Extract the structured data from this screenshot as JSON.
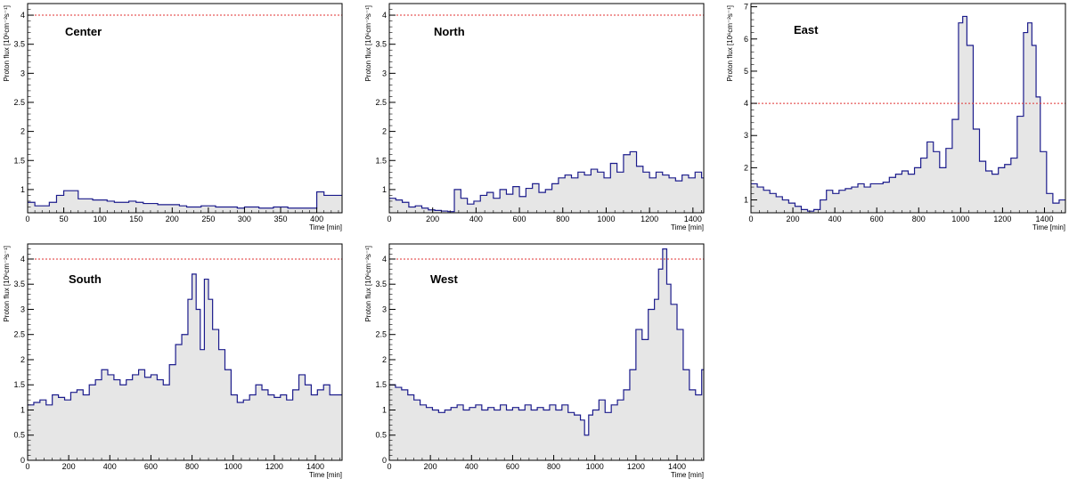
{
  "colors": {
    "line": "#1c1c8c",
    "fill": "#e6e6e6",
    "threshold": "#e03030",
    "frame": "#000000"
  },
  "chart_data": [
    {
      "type": "area",
      "title": "Center",
      "xlabel": "Time [min]",
      "ylabel": "Proton flux [10⁶cm⁻²s⁻¹]",
      "xlim": [
        0,
        435
      ],
      "ylim": [
        0.6,
        4.2
      ],
      "xticks": [
        0,
        50,
        100,
        150,
        200,
        250,
        300,
        350,
        400
      ],
      "yticks": [
        1,
        1.5,
        2,
        2.5,
        3,
        3.5,
        4
      ],
      "threshold": 4,
      "grid": false,
      "x": [
        0,
        10,
        20,
        30,
        40,
        50,
        60,
        70,
        80,
        90,
        100,
        110,
        120,
        130,
        140,
        150,
        160,
        170,
        180,
        190,
        200,
        210,
        220,
        230,
        240,
        250,
        260,
        270,
        280,
        290,
        300,
        310,
        320,
        330,
        340,
        350,
        360,
        370,
        380,
        390,
        400,
        410,
        420,
        430
      ],
      "values": [
        0.78,
        0.72,
        0.72,
        0.78,
        0.9,
        0.98,
        0.98,
        0.84,
        0.84,
        0.82,
        0.82,
        0.8,
        0.78,
        0.78,
        0.8,
        0.78,
        0.76,
        0.76,
        0.74,
        0.74,
        0.74,
        0.72,
        0.7,
        0.7,
        0.72,
        0.72,
        0.7,
        0.7,
        0.7,
        0.68,
        0.7,
        0.7,
        0.68,
        0.68,
        0.7,
        0.7,
        0.68,
        0.68,
        0.68,
        0.68,
        0.96,
        0.9,
        0.9,
        0.9
      ]
    },
    {
      "type": "area",
      "title": "North",
      "xlabel": "Time [min]",
      "ylabel": "Proton flux [10⁶cm⁻²s⁻¹]",
      "xlim": [
        0,
        1450
      ],
      "ylim": [
        0.6,
        4.2
      ],
      "xticks": [
        0,
        200,
        400,
        600,
        800,
        1000,
        1200,
        1400
      ],
      "yticks": [
        1,
        1.5,
        2,
        2.5,
        3,
        3.5,
        4
      ],
      "threshold": 4,
      "grid": false,
      "x": [
        0,
        30,
        60,
        90,
        120,
        150,
        180,
        210,
        240,
        270,
        300,
        330,
        360,
        390,
        420,
        450,
        480,
        510,
        540,
        570,
        600,
        630,
        660,
        690,
        720,
        750,
        780,
        810,
        840,
        870,
        900,
        930,
        960,
        990,
        1020,
        1050,
        1080,
        1110,
        1140,
        1170,
        1200,
        1230,
        1260,
        1290,
        1320,
        1350,
        1380,
        1410,
        1440
      ],
      "values": [
        0.85,
        0.82,
        0.78,
        0.7,
        0.72,
        0.68,
        0.65,
        0.64,
        0.63,
        0.62,
        1.0,
        0.85,
        0.75,
        0.8,
        0.9,
        0.95,
        0.85,
        1.0,
        0.92,
        1.05,
        0.88,
        1.02,
        1.1,
        0.95,
        1.0,
        1.1,
        1.2,
        1.25,
        1.2,
        1.3,
        1.25,
        1.35,
        1.3,
        1.2,
        1.45,
        1.3,
        1.6,
        1.65,
        1.4,
        1.3,
        1.2,
        1.3,
        1.25,
        1.2,
        1.15,
        1.25,
        1.2,
        1.3,
        1.2
      ]
    },
    {
      "type": "area",
      "title": "East",
      "xlabel": "Time [min]",
      "ylabel": "Proton flux [10⁶cm⁻²s⁻¹]",
      "xlim": [
        0,
        1500
      ],
      "ylim": [
        0.6,
        7.1
      ],
      "xticks": [
        0,
        200,
        400,
        600,
        800,
        1000,
        1200,
        1400
      ],
      "yticks": [
        1,
        2,
        3,
        4,
        5,
        6,
        7
      ],
      "threshold": 4,
      "grid": false,
      "x": [
        0,
        30,
        60,
        90,
        120,
        150,
        180,
        210,
        240,
        270,
        300,
        330,
        360,
        390,
        420,
        450,
        480,
        510,
        540,
        570,
        600,
        630,
        660,
        690,
        720,
        750,
        780,
        810,
        840,
        870,
        900,
        930,
        960,
        990,
        1010,
        1030,
        1060,
        1090,
        1120,
        1150,
        1180,
        1210,
        1240,
        1270,
        1300,
        1320,
        1340,
        1360,
        1380,
        1410,
        1440,
        1470
      ],
      "values": [
        1.5,
        1.4,
        1.3,
        1.2,
        1.1,
        1.0,
        0.9,
        0.8,
        0.7,
        0.65,
        0.7,
        1.0,
        1.3,
        1.2,
        1.3,
        1.35,
        1.4,
        1.5,
        1.4,
        1.5,
        1.5,
        1.55,
        1.7,
        1.8,
        1.9,
        1.8,
        2.0,
        2.3,
        2.8,
        2.5,
        2.0,
        2.6,
        3.5,
        6.5,
        6.7,
        5.8,
        3.2,
        2.2,
        1.9,
        1.8,
        2.0,
        2.1,
        2.3,
        3.6,
        6.2,
        6.5,
        5.8,
        4.2,
        2.5,
        1.2,
        0.9,
        1.0
      ]
    },
    {
      "type": "area",
      "title": "South",
      "xlabel": "Time [min]",
      "ylabel": "Proton flux [10⁶cm⁻²s⁻¹]",
      "xlim": [
        0,
        1530
      ],
      "ylim": [
        0,
        4.3
      ],
      "xticks": [
        0,
        200,
        400,
        600,
        800,
        1000,
        1200,
        1400
      ],
      "yticks": [
        0,
        0.5,
        1,
        1.5,
        2,
        2.5,
        3,
        3.5,
        4
      ],
      "threshold": 4,
      "grid": false,
      "x": [
        0,
        30,
        60,
        90,
        120,
        150,
        180,
        210,
        240,
        270,
        300,
        330,
        360,
        390,
        420,
        450,
        480,
        510,
        540,
        570,
        600,
        630,
        660,
        690,
        720,
        750,
        780,
        800,
        820,
        840,
        860,
        880,
        900,
        930,
        960,
        990,
        1020,
        1050,
        1080,
        1110,
        1140,
        1170,
        1200,
        1230,
        1260,
        1290,
        1320,
        1350,
        1380,
        1410,
        1440,
        1470,
        1500
      ],
      "values": [
        1.1,
        1.15,
        1.2,
        1.1,
        1.3,
        1.25,
        1.2,
        1.35,
        1.4,
        1.3,
        1.5,
        1.6,
        1.8,
        1.7,
        1.6,
        1.5,
        1.6,
        1.7,
        1.8,
        1.65,
        1.7,
        1.6,
        1.5,
        1.9,
        2.3,
        2.5,
        3.2,
        3.7,
        3.0,
        2.2,
        3.6,
        3.2,
        2.6,
        2.2,
        1.8,
        1.3,
        1.15,
        1.2,
        1.3,
        1.5,
        1.4,
        1.3,
        1.25,
        1.3,
        1.2,
        1.4,
        1.7,
        1.5,
        1.3,
        1.4,
        1.5,
        1.3,
        1.3
      ]
    },
    {
      "type": "area",
      "title": "West",
      "xlabel": "Time [min]",
      "ylabel": "Proton flux [10⁶cm⁻²s⁻¹]",
      "xlim": [
        0,
        1530
      ],
      "ylim": [
        0,
        4.3
      ],
      "xticks": [
        0,
        200,
        400,
        600,
        800,
        1000,
        1200,
        1400
      ],
      "yticks": [
        0,
        0.5,
        1,
        1.5,
        2,
        2.5,
        3,
        3.5,
        4
      ],
      "threshold": 4,
      "grid": false,
      "x": [
        0,
        30,
        60,
        90,
        120,
        150,
        180,
        210,
        240,
        270,
        300,
        330,
        360,
        390,
        420,
        450,
        480,
        510,
        540,
        570,
        600,
        630,
        660,
        690,
        720,
        750,
        780,
        810,
        840,
        870,
        900,
        930,
        950,
        970,
        990,
        1020,
        1050,
        1080,
        1110,
        1140,
        1170,
        1200,
        1230,
        1260,
        1290,
        1310,
        1330,
        1350,
        1370,
        1400,
        1430,
        1460,
        1490,
        1520
      ],
      "values": [
        1.5,
        1.45,
        1.4,
        1.3,
        1.2,
        1.1,
        1.05,
        1.0,
        0.95,
        1.0,
        1.05,
        1.1,
        1.0,
        1.05,
        1.1,
        1.0,
        1.05,
        1.0,
        1.1,
        1.0,
        1.05,
        1.0,
        1.1,
        1.0,
        1.05,
        1.0,
        1.1,
        1.0,
        1.1,
        0.95,
        0.9,
        0.8,
        0.5,
        0.9,
        1.0,
        1.2,
        0.95,
        1.1,
        1.2,
        1.4,
        1.8,
        2.6,
        2.4,
        3.0,
        3.2,
        3.8,
        4.2,
        3.5,
        3.1,
        2.6,
        1.8,
        1.4,
        1.3,
        1.8
      ]
    }
  ]
}
